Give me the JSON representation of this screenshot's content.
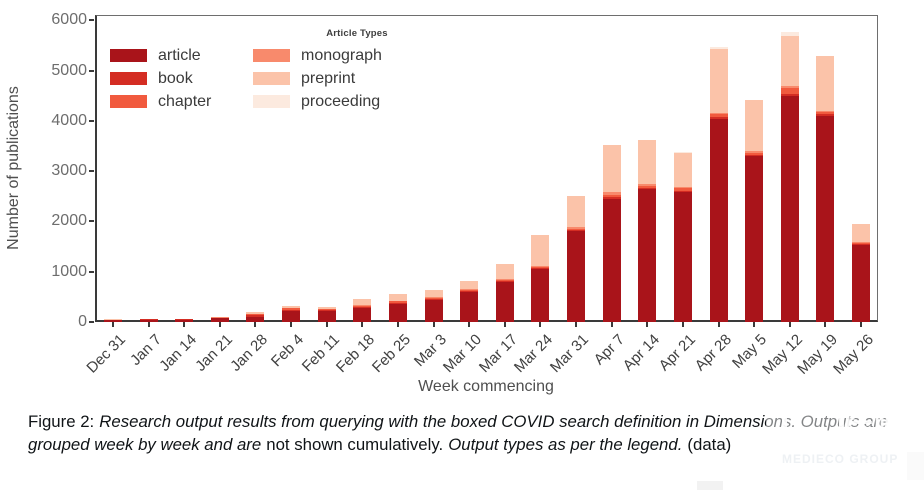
{
  "figure": {
    "caption": {
      "prefix": "Figure 2:",
      "italic1": "Research output results from querying with the boxed COVID search definition in Dimensions. Outputs are grouped week by week and are",
      "upright1": "not shown cumulatively.",
      "italic2": "Output types as per the legend.",
      "link": "(data)"
    },
    "watermark": {
      "line1": "医咖会",
      "line2": "MEDIECO GROUP"
    }
  },
  "chart_data": {
    "type": "bar",
    "stacked": true,
    "title": "",
    "xlabel": "Week commencing",
    "ylabel": "Number of publications",
    "ylim": [
      0,
      6000
    ],
    "ytick_step": 1000,
    "grid": false,
    "legend_title": "Article Types",
    "legend_position": "top-left-inside",
    "axis_color": "#3a3a3a",
    "categories": [
      "Dec 31",
      "Jan 7",
      "Jan 14",
      "Jan 21",
      "Jan 28",
      "Feb 4",
      "Feb 11",
      "Feb 18",
      "Feb 25",
      "Mar 3",
      "Mar 10",
      "Mar 17",
      "Mar 24",
      "Mar 31",
      "Apr 7",
      "Apr 14",
      "Apr 21",
      "Apr 28",
      "May 5",
      "May 12",
      "May 19",
      "May 26"
    ],
    "series": [
      {
        "name": "article",
        "color": "#a9141a",
        "values": [
          35,
          50,
          45,
          70,
          105,
          220,
          210,
          280,
          365,
          445,
          590,
          805,
          1055,
          1805,
          2450,
          2650,
          2590,
          4040,
          3300,
          4500,
          4100,
          1530
        ]
      },
      {
        "name": "book",
        "color": "#d42d23",
        "values": [
          8,
          8,
          8,
          10,
          25,
          25,
          20,
          20,
          20,
          20,
          20,
          20,
          20,
          25,
          30,
          25,
          25,
          30,
          25,
          40,
          30,
          15
        ]
      },
      {
        "name": "chapter",
        "color": "#f15a3e",
        "values": [
          5,
          5,
          5,
          8,
          20,
          25,
          20,
          20,
          25,
          20,
          20,
          20,
          20,
          25,
          45,
          35,
          45,
          60,
          45,
          120,
          50,
          25
        ]
      },
      {
        "name": "monograph",
        "color": "#f88a6c",
        "values": [
          2,
          2,
          2,
          4,
          15,
          15,
          10,
          15,
          15,
          15,
          20,
          20,
          25,
          25,
          70,
          30,
          25,
          25,
          25,
          35,
          25,
          15
        ]
      },
      {
        "name": "preprint",
        "color": "#fbc3a9",
        "values": [
          5,
          5,
          5,
          10,
          40,
          35,
          45,
          115,
          130,
          130,
          160,
          285,
          620,
          620,
          930,
          880,
          680,
          1280,
          1020,
          1000,
          1080,
          360
        ]
      },
      {
        "name": "proceeding",
        "color": "#fceadf",
        "values": [
          0,
          0,
          0,
          0,
          0,
          0,
          0,
          0,
          0,
          0,
          0,
          0,
          0,
          0,
          0,
          0,
          10,
          30,
          10,
          80,
          15,
          5
        ]
      }
    ],
    "totals": [
      55,
      70,
      65,
      102,
      205,
      320,
      305,
      450,
      555,
      630,
      810,
      1150,
      1740,
      2500,
      3525,
      3620,
      3375,
      5465,
      4425,
      5775,
      5300,
      1950
    ]
  }
}
